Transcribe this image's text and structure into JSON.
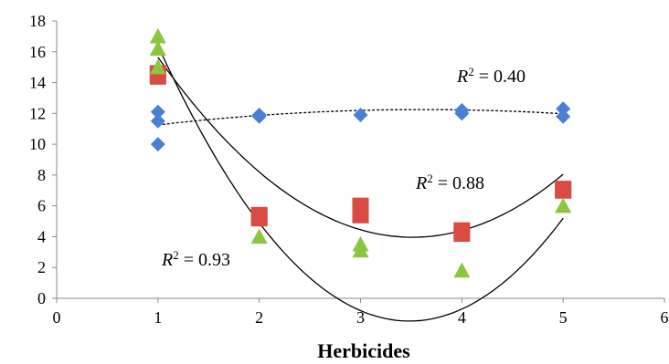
{
  "chart_data": {
    "type": "scatter",
    "xlabel": "Herbicides",
    "ylabel": "",
    "xlim": [
      0,
      6
    ],
    "ylim": [
      0,
      18
    ],
    "x_ticks": [
      "0",
      "1",
      "2",
      "3",
      "4",
      "5",
      "6"
    ],
    "y_ticks": [
      "0",
      "2",
      "4",
      "6",
      "8",
      "10",
      "12",
      "14",
      "16",
      "18"
    ],
    "grid": false,
    "series": [
      {
        "marker": "diamond",
        "color": "#4a7fd4",
        "points": [
          [
            1,
            12.1
          ],
          [
            1,
            11.5
          ],
          [
            1,
            10
          ],
          [
            2,
            11.9
          ],
          [
            2,
            11.8
          ],
          [
            3,
            11.9
          ],
          [
            4,
            12.2
          ],
          [
            4,
            12
          ],
          [
            5,
            12.3
          ],
          [
            5,
            11.8
          ]
        ],
        "trend": {
          "type": "poly2",
          "dash": true,
          "coef": [
            10.35,
            1.05,
            -0.145
          ]
        }
      },
      {
        "marker": "square",
        "color": "#d94b43",
        "points": [
          [
            1,
            14.4
          ],
          [
            1,
            14.6
          ],
          [
            2,
            5.2
          ],
          [
            2,
            5.4
          ],
          [
            3,
            5.4
          ],
          [
            3,
            6
          ],
          [
            4,
            4.4
          ],
          [
            4,
            4.2
          ],
          [
            5,
            7
          ],
          [
            5,
            7.1
          ]
        ],
        "trend": {
          "type": "poly2",
          "dash": false,
          "coef": [
            26.8,
            -13.0,
            1.85
          ]
        }
      },
      {
        "marker": "triangle",
        "color": "#8cc63f",
        "points": [
          [
            1,
            17
          ],
          [
            1,
            16.2
          ],
          [
            1,
            15
          ],
          [
            2,
            4
          ],
          [
            3,
            3.5
          ],
          [
            3,
            3.1
          ],
          [
            4,
            1.8
          ],
          [
            5,
            6
          ]
        ],
        "trend": {
          "type": "poly2",
          "dash": false,
          "coef": [
            33.7,
            -20.2,
            2.9
          ]
        }
      }
    ],
    "annotations": [
      {
        "label": "R",
        "sup": "2",
        "value": " = 0.40"
      },
      {
        "label": "R",
        "sup": "2",
        "value": " = 0.88"
      },
      {
        "label": "R",
        "sup": "2",
        "value": " = 0.93"
      }
    ]
  }
}
